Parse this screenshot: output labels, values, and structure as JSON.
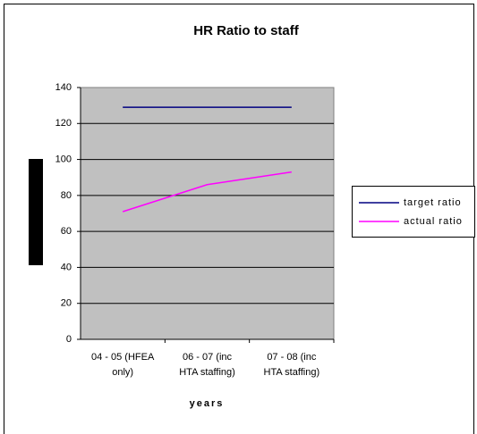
{
  "chart_data": {
    "type": "line",
    "title": "HR Ratio to staff",
    "x_label": "years",
    "categories": [
      [
        "04 - 05 (HFEA",
        "only)"
      ],
      [
        "06 - 07 (inc",
        "HTA staffing)"
      ],
      [
        "07 - 08 (inc",
        "HTA staffing)"
      ]
    ],
    "series": [
      {
        "name": "target ratio",
        "color": "#000080",
        "values": [
          129,
          129,
          129
        ]
      },
      {
        "name": "actual ratio",
        "color": "#ff00ff",
        "values": [
          71,
          86,
          93
        ]
      }
    ],
    "ylim": [
      0,
      140
    ],
    "yticks": [
      0,
      20,
      40,
      60,
      80,
      100,
      120,
      140
    ],
    "grid": true,
    "legend": "right"
  }
}
